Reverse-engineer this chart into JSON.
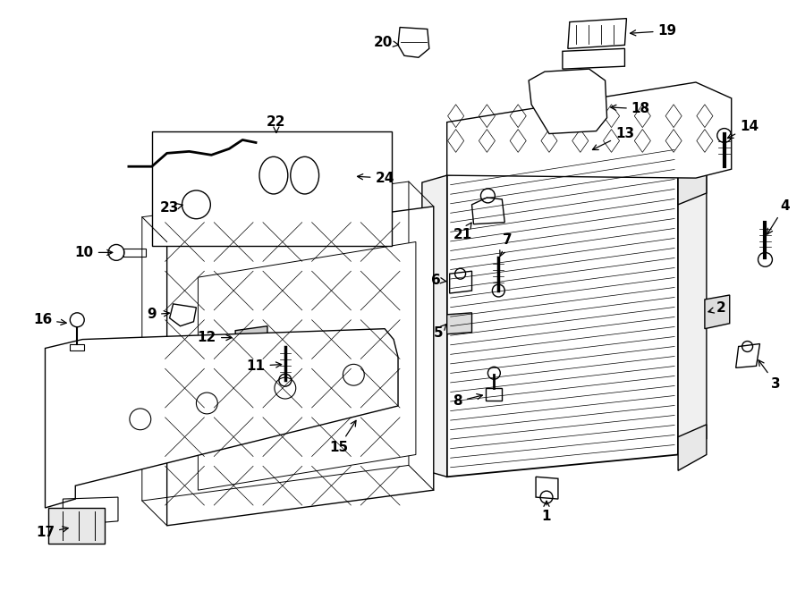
{
  "background_color": "#ffffff",
  "line_color": "#000000",
  "text_color": "#000000",
  "fig_width": 9.0,
  "fig_height": 6.61,
  "dpi": 100
}
